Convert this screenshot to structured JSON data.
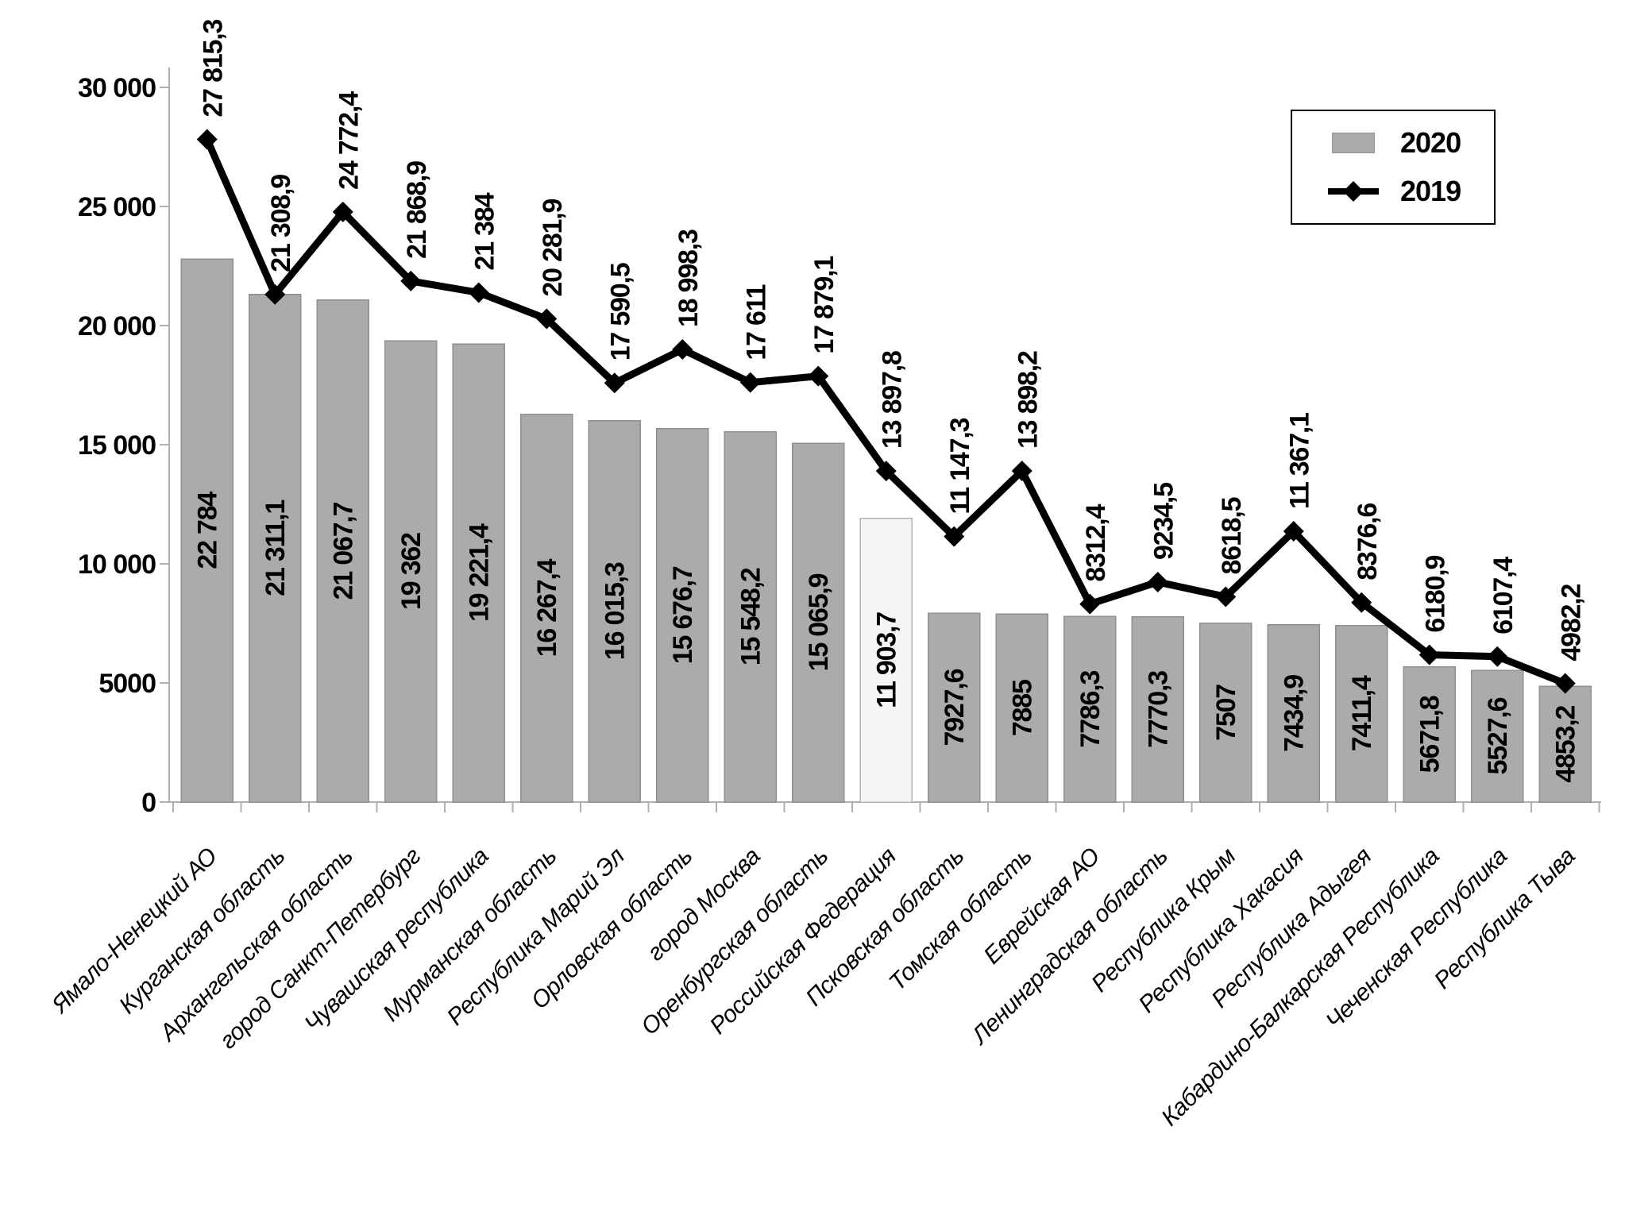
{
  "chart_data": {
    "type": "bar",
    "categories": [
      "Ямало-Ненецкий АО",
      "Курганская область",
      "Архангельская область",
      "город Санкт-Петербург",
      "Чувашская республика",
      "Мурманская область",
      "Республика Марий Эл",
      "Орловская область",
      "город Москва",
      "Оренбургская область",
      "Российская Федерация",
      "Псковская область",
      "Томская область",
      "Еврейская АО",
      "Ленинградская область",
      "Республика Крым",
      "Республика Хакасия",
      "Республика Адыгея",
      "Кабардино-Балкарская Республика",
      "Чеченская Республика",
      "Республика Тыва"
    ],
    "series": [
      {
        "name": "2020",
        "type": "bar",
        "values": [
          22784,
          21311.1,
          21067.7,
          19362,
          19221.4,
          16267.4,
          16015.3,
          15676.7,
          15548.2,
          15065.9,
          11903.7,
          7927.6,
          7885,
          7786.3,
          7770.3,
          7507,
          7434.9,
          7411.4,
          5671.8,
          5527.6,
          4853.2
        ],
        "labels": [
          "22 784",
          "21 311,1",
          "21 067,7",
          "19 362",
          "19 221,4",
          "16 267,4",
          "16 015,3",
          "15 676,7",
          "15 548,2",
          "15 065,9",
          "11 903,7",
          "7927,6",
          "7885",
          "7786,3",
          "7770,3",
          "7507",
          "7434,9",
          "7411,4",
          "5671,8",
          "5527,6",
          "4853,2"
        ]
      },
      {
        "name": "2019",
        "type": "line",
        "values": [
          27815.3,
          21308.9,
          24772.4,
          21868.9,
          21384,
          20281.9,
          17590.5,
          18998.3,
          17611,
          17879.1,
          13897.8,
          11147.3,
          13898.2,
          8312.4,
          9234.5,
          8618.5,
          11367.1,
          8376.6,
          6180.9,
          6107.4,
          4982.2
        ],
        "labels": [
          "27 815,3",
          "21 308,9",
          "24 772,4",
          "21 868,9",
          "21 384",
          "20 281,9",
          "17 590,5",
          "18 998,3",
          "17 611",
          "17 879,1",
          "13 897,8",
          "11 147,3",
          "13 898,2",
          "8312,4",
          "9234,5",
          "8618,5",
          "11 367,1",
          "8376,6",
          "6180,9",
          "6107,4",
          "4982,2"
        ]
      }
    ],
    "highlight_category": "Российская Федерация",
    "highlight_index": 10,
    "y_axis": {
      "min": 0,
      "max": 30000,
      "tick_interval": 5000,
      "tick_labels": [
        "30 000",
        "25 000",
        "20 000",
        "15 000",
        "10 000",
        "5000",
        "0"
      ]
    },
    "ylim": [
      0,
      30000
    ],
    "grid": false,
    "legend": {
      "position": "top-right",
      "entries": [
        {
          "label": "2020",
          "marker": "bar-swatch"
        },
        {
          "label": "2019",
          "marker": "line-diamond"
        }
      ]
    }
  },
  "colors": {
    "bar_fill": "#ababab",
    "bar_stroke": "#8f8f8f",
    "highlight_fill": "#f5f5f5",
    "highlight_stroke": "#b3b3b3",
    "line": "#000000",
    "axis": "#b0b0b0",
    "text": "#000000",
    "background": "#ffffff"
  }
}
